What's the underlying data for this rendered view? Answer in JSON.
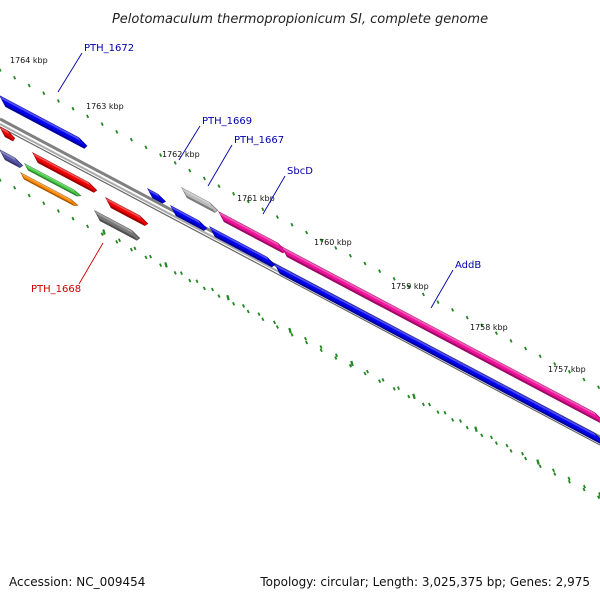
{
  "title": "Pelotomaculum thermopropionicum SI, complete genome",
  "footer": {
    "accession": "Accession: NC_009454",
    "summary": "Topology: circular; Length: 3,025,375 bp; Genes: 2,975"
  },
  "kbp_markers": [
    "1764 kbp",
    "1763 kbp",
    "1762 kbp",
    "1761 kbp",
    "1760 kbp",
    "1759 kbp",
    "1758 kbp",
    "1757 kbp"
  ],
  "gene_labels": [
    {
      "name": "PTH_1672",
      "color": "#0000aa"
    },
    {
      "name": "PTH_1669",
      "color": "#0000aa"
    },
    {
      "name": "PTH_1667",
      "color": "#0000aa"
    },
    {
      "name": "SbcD",
      "color": "#0000aa"
    },
    {
      "name": "AddB",
      "color": "#0000aa"
    },
    {
      "name": "PTH_1668",
      "color": "#cc0000"
    }
  ],
  "colors": {
    "tick": "#228822",
    "backbone": "#808080",
    "blue_gene": "#0000ee",
    "red_gene": "#ee0000",
    "pink_gene": "#ee1199",
    "gray_gene": "#777777",
    "lightgray_gene": "#bbbbbb",
    "purple_gene": "#5555aa",
    "green_gene": "#44cc44",
    "orange_gene": "#ff8800"
  }
}
